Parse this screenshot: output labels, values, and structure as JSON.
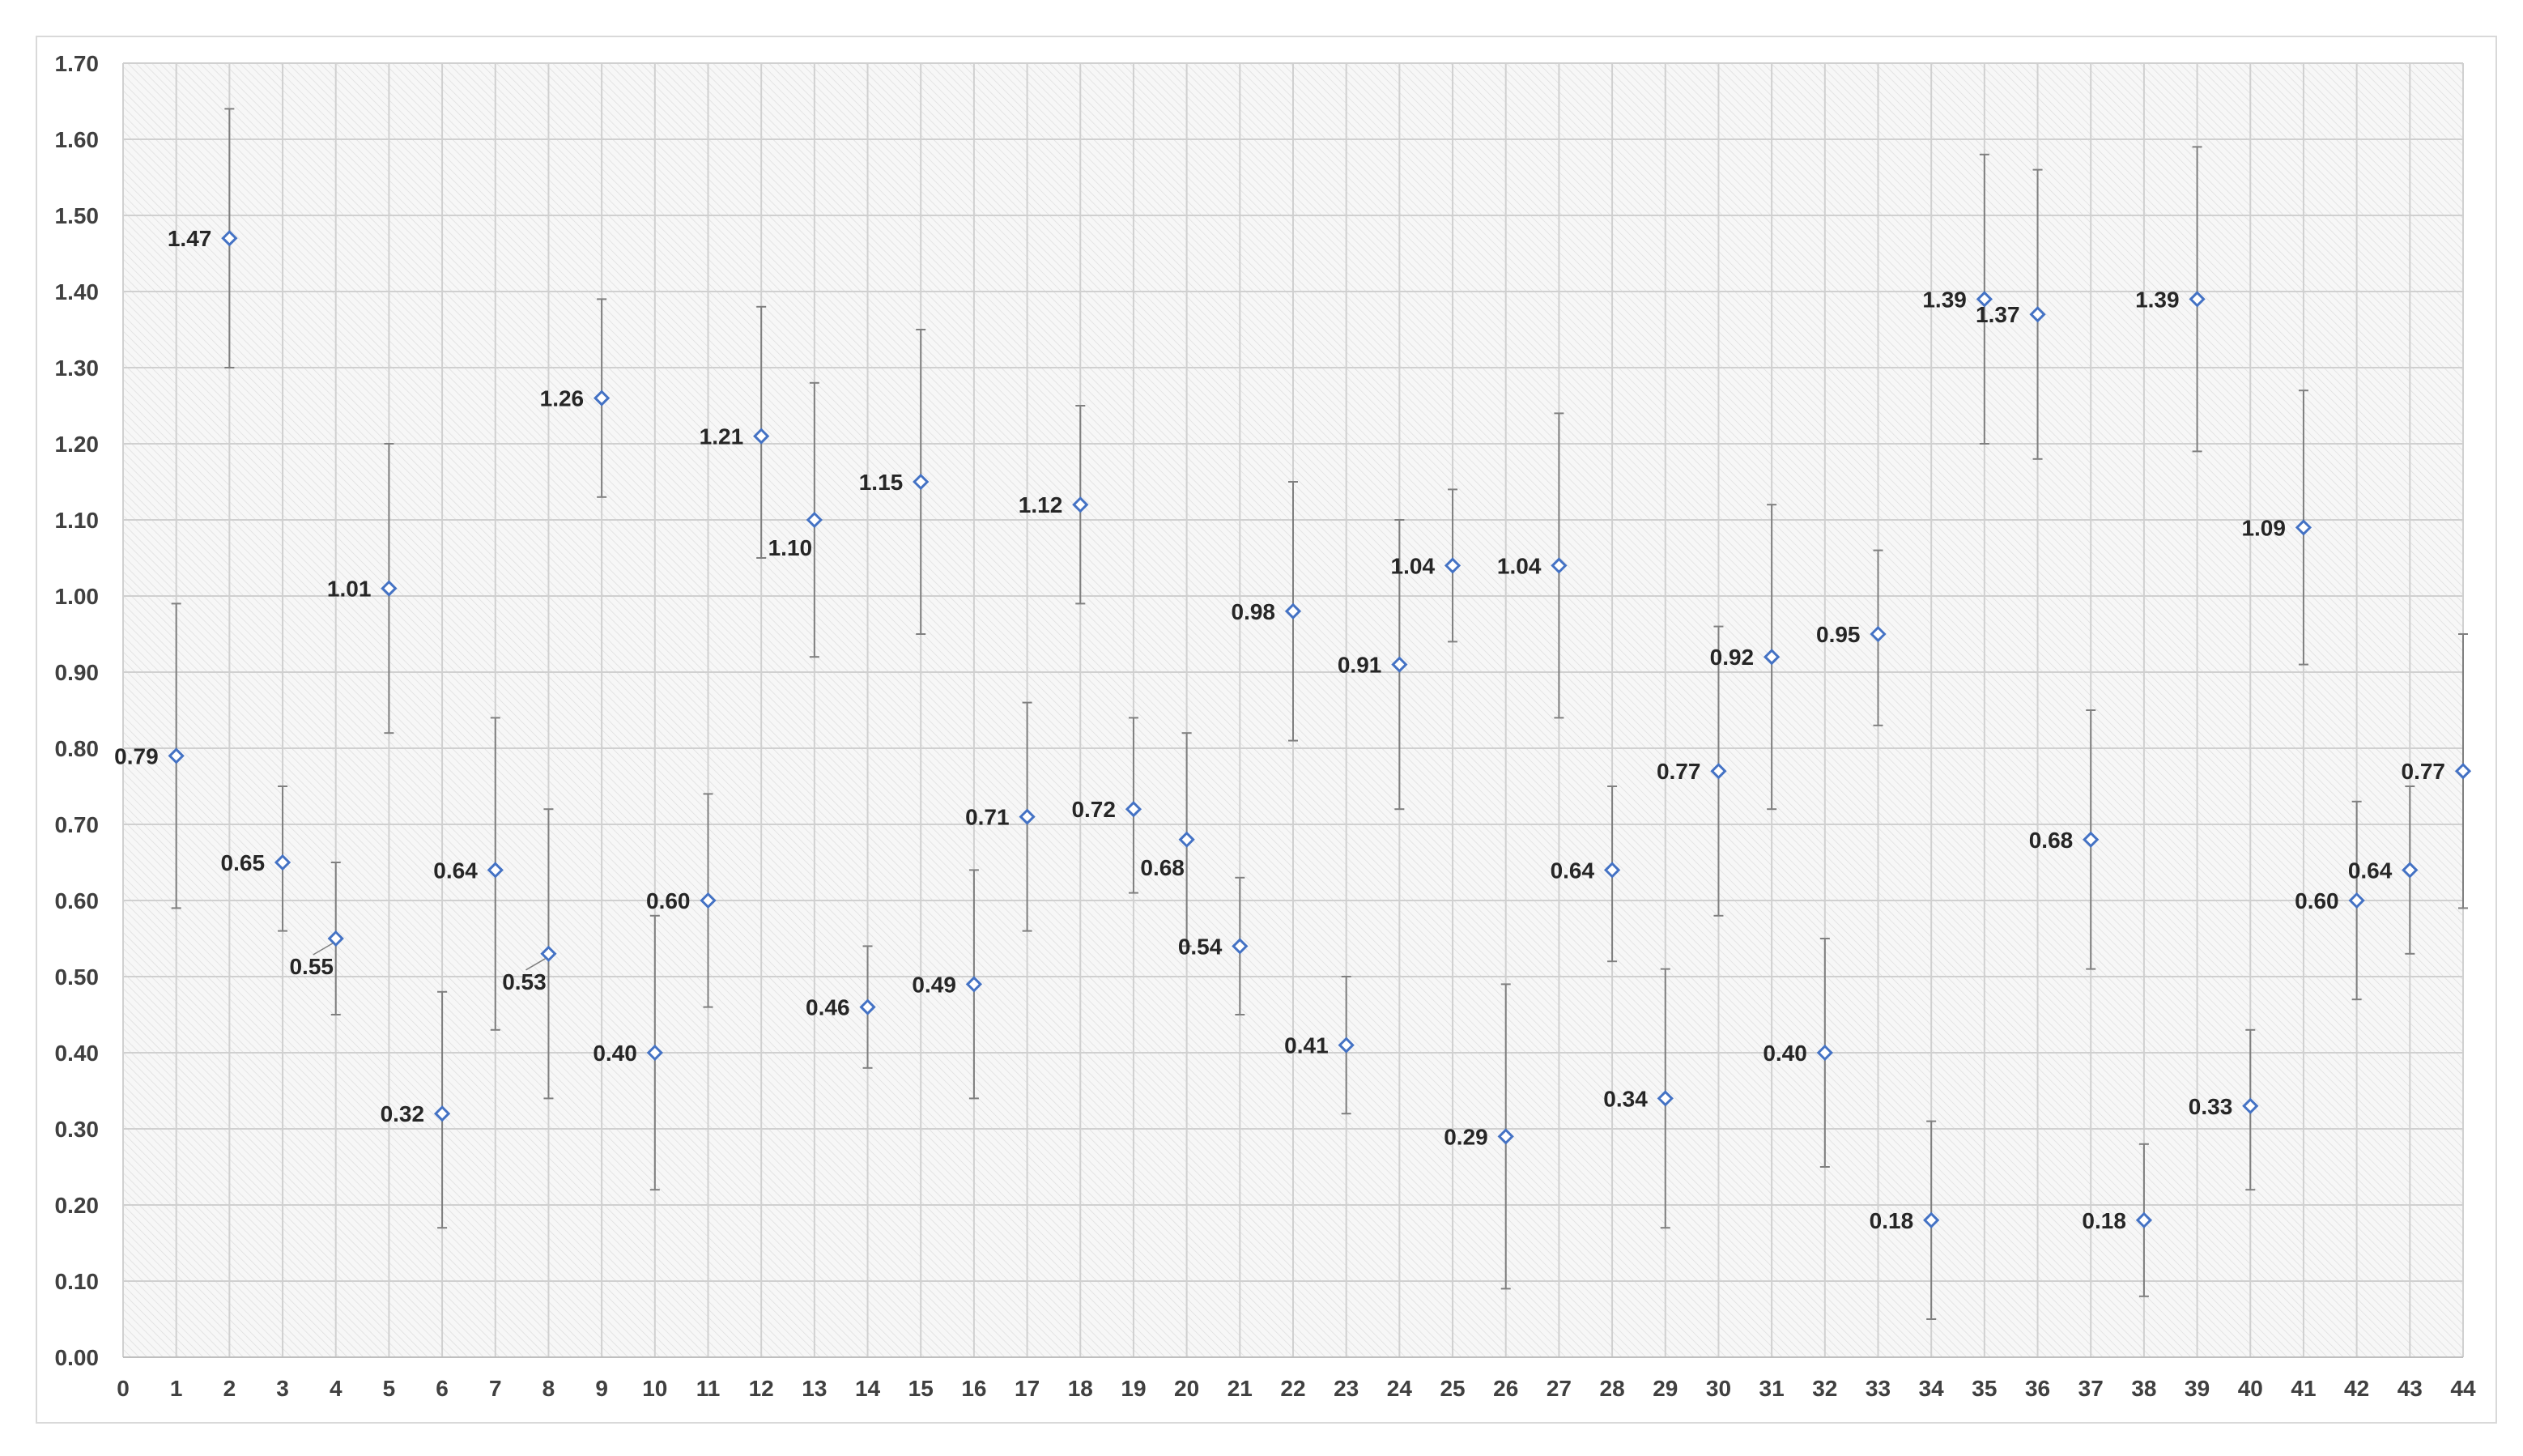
{
  "chart_data": {
    "type": "scatter",
    "title": "",
    "xlabel": "",
    "ylabel": "",
    "xlim": [
      0,
      44
    ],
    "ylim": [
      0,
      1.7
    ],
    "x_ticks": [
      "0",
      "1",
      "2",
      "3",
      "4",
      "5",
      "6",
      "7",
      "8",
      "9",
      "10",
      "11",
      "12",
      "13",
      "14",
      "15",
      "16",
      "17",
      "18",
      "19",
      "20",
      "21",
      "22",
      "23",
      "24",
      "25",
      "26",
      "27",
      "28",
      "29",
      "30",
      "31",
      "32",
      "33",
      "34",
      "35",
      "36",
      "37",
      "38",
      "39",
      "40",
      "41",
      "42",
      "43",
      "44"
    ],
    "y_ticks": [
      "0.00",
      "0.10",
      "0.20",
      "0.30",
      "0.40",
      "0.50",
      "0.60",
      "0.70",
      "0.80",
      "0.90",
      "1.00",
      "1.10",
      "1.20",
      "1.30",
      "1.40",
      "1.50",
      "1.60",
      "1.70"
    ],
    "grid": true,
    "legend": "none",
    "marker_color": "#4472c4",
    "error_bar_color": "#7f7f7f",
    "series": [
      {
        "x": [
          1,
          2,
          3,
          4,
          5,
          6,
          7,
          8,
          9,
          10,
          11,
          12,
          13,
          14,
          15,
          16,
          17,
          18,
          19,
          20,
          21,
          22,
          23,
          24,
          25,
          26,
          27,
          28,
          29,
          30,
          31,
          32,
          33,
          34,
          35,
          36,
          37,
          38,
          39,
          40,
          41,
          42,
          43,
          44
        ],
        "y": [
          0.79,
          1.47,
          0.65,
          0.55,
          1.01,
          0.32,
          0.64,
          0.53,
          1.26,
          0.4,
          0.6,
          1.21,
          1.1,
          0.46,
          1.15,
          0.49,
          0.71,
          1.12,
          0.72,
          0.68,
          0.54,
          0.98,
          0.41,
          0.91,
          1.04,
          0.29,
          1.04,
          0.64,
          0.34,
          0.77,
          0.92,
          0.4,
          0.95,
          0.18,
          1.39,
          1.37,
          0.68,
          0.18,
          1.39,
          0.33,
          1.09,
          0.6,
          0.64,
          0.77
        ],
        "y_low": [
          0.59,
          1.3,
          0.56,
          0.45,
          0.82,
          0.17,
          0.43,
          0.34,
          1.13,
          0.22,
          0.46,
          1.05,
          0.92,
          0.38,
          0.95,
          0.34,
          0.56,
          0.99,
          0.61,
          0.54,
          0.45,
          0.81,
          0.32,
          0.72,
          0.94,
          0.09,
          0.84,
          0.52,
          0.17,
          0.58,
          0.72,
          0.25,
          0.83,
          0.05,
          1.2,
          1.18,
          0.51,
          0.08,
          1.19,
          0.22,
          0.91,
          0.47,
          0.53,
          0.59
        ],
        "y_high": [
          0.99,
          1.64,
          0.75,
          0.65,
          1.2,
          0.48,
          0.84,
          0.72,
          1.39,
          0.58,
          0.74,
          1.38,
          1.28,
          0.54,
          1.35,
          0.64,
          0.86,
          1.25,
          0.84,
          0.82,
          0.63,
          1.15,
          0.5,
          1.1,
          1.14,
          0.49,
          1.24,
          0.75,
          0.51,
          0.96,
          1.12,
          0.55,
          1.06,
          0.31,
          1.58,
          1.56,
          0.85,
          0.28,
          1.59,
          0.43,
          1.27,
          0.73,
          0.75,
          0.95
        ],
        "labels": [
          "0.79",
          "1.47",
          "0.65",
          "0.55",
          "1.01",
          "0.32",
          "0.64",
          "0.53",
          "1.26",
          "0.40",
          "0.60",
          "1.21",
          "1.10",
          "0.46",
          "1.15",
          "0.49",
          "0.71",
          "1.12",
          "0.72",
          "0.68",
          "0.54",
          "0.98",
          "0.41",
          "0.91",
          "1.04",
          "0.29",
          "1.04",
          "0.64",
          "0.34",
          "0.77",
          "0.92",
          "0.40",
          "0.95",
          "0.18",
          "1.39",
          "1.37",
          "0.68",
          "0.18",
          "1.39",
          "0.33",
          "1.09",
          "0.60",
          "0.64",
          "0.77"
        ]
      }
    ]
  }
}
